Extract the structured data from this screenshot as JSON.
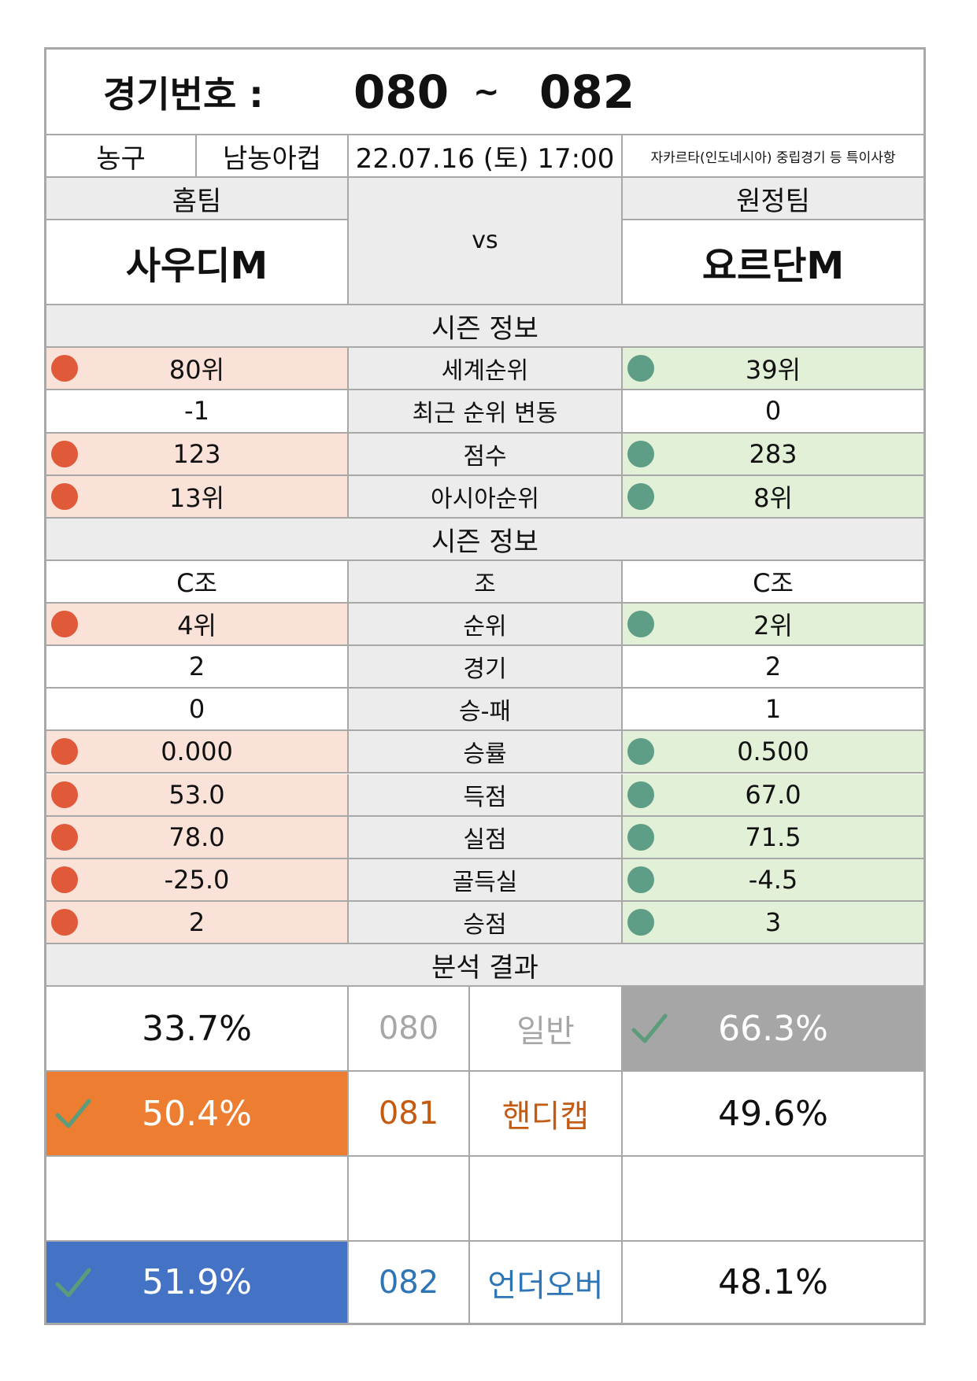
{
  "header": {
    "match_label": "경기번호 :",
    "match_from": "080",
    "match_sep": "~",
    "match_to": "082"
  },
  "info": {
    "sport": "농구",
    "league": "남농아컵",
    "datetime": "22.07.16 (토) 17:00",
    "note": "자카르타(인도네시아) 중립경기 등 특이사항"
  },
  "teams": {
    "home_label": "홈팀",
    "away_label": "원정팀",
    "home_name": "사우디M",
    "away_name": "요르단M",
    "vs": "vs"
  },
  "sections": {
    "season1": "시즌 정보",
    "season2": "시즌 정보",
    "analysis": "분석 결과"
  },
  "colors": {
    "home_dot": "#e05a3a",
    "away_dot": "#5f9e86",
    "home_bg": "#fbe2d8",
    "away_bg": "#e3f0d8",
    "orange": "#ed7d31",
    "blue": "#4472c4",
    "gray_box": "#a6a6a6"
  },
  "season_rows": [
    {
      "label": "세계순위",
      "home": "80위",
      "away": "39위",
      "home_mark": true,
      "away_mark": true
    },
    {
      "label": "최근 순위 변동",
      "home": "-1",
      "away": "0",
      "home_mark": false,
      "away_mark": false
    },
    {
      "label": "점수",
      "home": "123",
      "away": "283",
      "home_mark": true,
      "away_mark": true
    },
    {
      "label": "아시아순위",
      "home": "13위",
      "away": "8위",
      "home_mark": true,
      "away_mark": true
    }
  ],
  "group_rows": [
    {
      "label": "조",
      "home": "C조",
      "away": "C조",
      "home_mark": false,
      "away_mark": false
    },
    {
      "label": "순위",
      "home": "4위",
      "away": "2위",
      "home_mark": true,
      "away_mark": true
    },
    {
      "label": "경기",
      "home": "2",
      "away": "2",
      "home_mark": false,
      "away_mark": false
    },
    {
      "label": "승-패",
      "home": "0",
      "away": "1",
      "home_mark": false,
      "away_mark": false
    },
    {
      "label": "승률",
      "home": "0.000",
      "away": "0.500",
      "home_mark": true,
      "away_mark": true
    },
    {
      "label": "득점",
      "home": "53.0",
      "away": "67.0",
      "home_mark": true,
      "away_mark": true
    },
    {
      "label": "실점",
      "home": "78.0",
      "away": "71.5",
      "home_mark": true,
      "away_mark": true
    },
    {
      "label": "골득실",
      "home": "-25.0",
      "away": "-4.5",
      "home_mark": true,
      "away_mark": true
    },
    {
      "label": "승점",
      "home": "2",
      "away": "3",
      "home_mark": true,
      "away_mark": true
    }
  ],
  "analysis": {
    "general": {
      "code": "080",
      "type": "일반",
      "home_pct": "33.7%",
      "away_pct": "66.3%"
    },
    "handicap": {
      "code": "081",
      "type": "핸디캡",
      "home_pct": "50.4%",
      "away_pct": "49.6%"
    },
    "underover": {
      "code": "082",
      "type": "언더오버",
      "home_pct": "51.9%",
      "away_pct": "48.1%"
    }
  }
}
